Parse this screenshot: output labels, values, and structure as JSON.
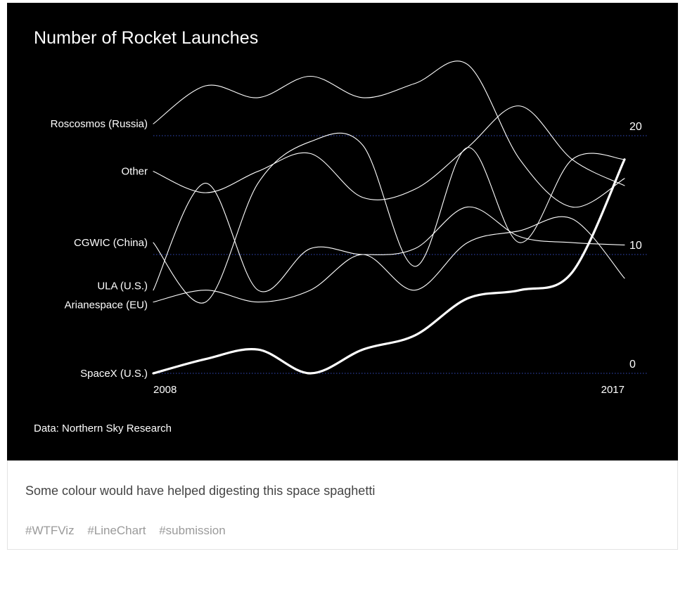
{
  "card": {
    "caption": "Some colour would have helped digesting this space spaghetti",
    "tags": [
      "#WTFViz",
      "#LineChart",
      "#submission"
    ]
  },
  "chart_data": {
    "type": "line",
    "title": "Number of Rocket Launches",
    "source": "Data: Northern Sky Research",
    "xlabel": "",
    "ylabel": "",
    "x": [
      2008,
      2009,
      2010,
      2011,
      2012,
      2013,
      2014,
      2015,
      2016,
      2017
    ],
    "x_tick_labels": [
      "2008",
      "2017"
    ],
    "y_ticks": [
      0,
      10,
      20
    ],
    "ylim": [
      0,
      22
    ],
    "grid": "dotted horizontal lines at y ticks",
    "background": "#000000",
    "line_color": "#ffffff",
    "highlight_series": "SpaceX (U.S.)",
    "series": [
      {
        "name": "Roscosmos (Russia)",
        "values": [
          21,
          24.2,
          23.2,
          25,
          23.2,
          24.4,
          26,
          18,
          14,
          16.4
        ]
      },
      {
        "name": "Other",
        "values": [
          17,
          15.2,
          17,
          18.5,
          14.8,
          15.5,
          19,
          22.5,
          18,
          15.8
        ]
      },
      {
        "name": "CGWIC (China)",
        "values": [
          11,
          6,
          16,
          19.5,
          19.2,
          9,
          19,
          11,
          18,
          18
        ]
      },
      {
        "name": "ULA (U.S.)",
        "values": [
          7,
          16,
          7,
          10.5,
          10,
          10.5,
          14,
          11.5,
          11,
          10.8
        ]
      },
      {
        "name": "Arianespace (EU)",
        "values": [
          6,
          7,
          6,
          7,
          10,
          7,
          11,
          12,
          13,
          8
        ]
      },
      {
        "name": "SpaceX (U.S.)",
        "values": [
          0,
          1.2,
          2,
          0,
          2,
          3.2,
          6.3,
          7,
          8.5,
          18
        ]
      }
    ]
  }
}
